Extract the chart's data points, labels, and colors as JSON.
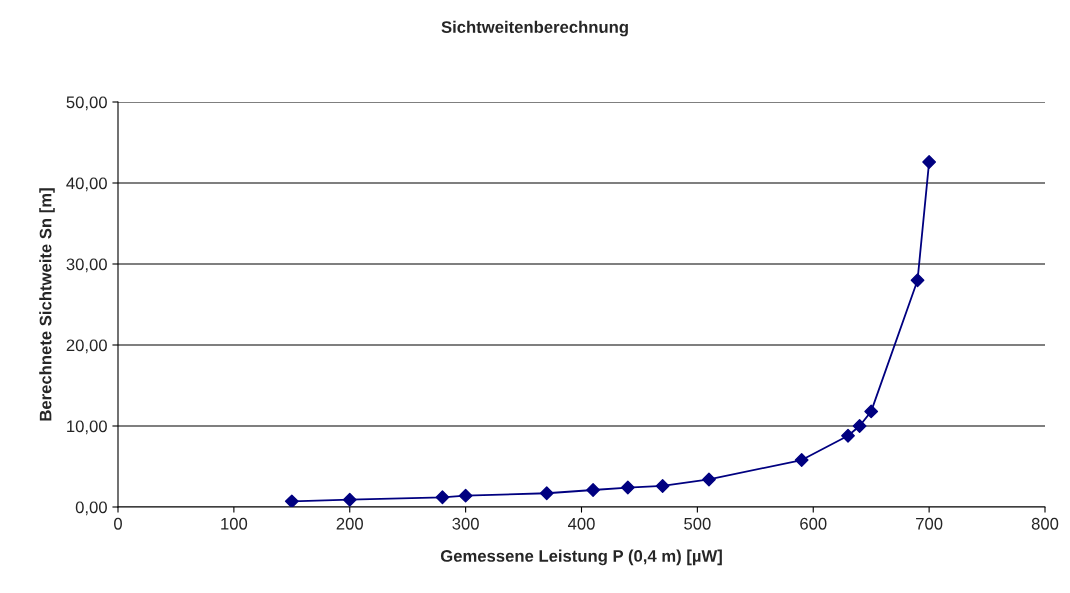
{
  "chart_data": {
    "type": "line",
    "title": "Sichtweitenberechnung",
    "xlabel": "Gemessene Leistung P (0,4 m) [µW]",
    "ylabel": "Berechnete Sichtweite Sn [m]",
    "x": [
      150,
      200,
      280,
      300,
      370,
      410,
      440,
      470,
      510,
      590,
      630,
      640,
      650,
      690,
      700
    ],
    "series": [
      {
        "color": "#000080",
        "values": [
          0.7,
          0.9,
          1.2,
          1.4,
          1.7,
          2.1,
          2.4,
          2.6,
          3.4,
          5.8,
          8.8,
          10.0,
          11.8,
          28.0,
          42.6
        ]
      }
    ],
    "xlim": [
      0,
      800
    ],
    "xticks": [
      0,
      100,
      200,
      300,
      400,
      500,
      600,
      700,
      800
    ],
    "ylim": [
      0,
      50
    ],
    "yticks": [
      {
        "value": 0,
        "label": "0,00"
      },
      {
        "value": 10,
        "label": "10,00"
      },
      {
        "value": 20,
        "label": "20,00"
      },
      {
        "value": 30,
        "label": "30,00"
      },
      {
        "value": 40,
        "label": "40,00"
      },
      {
        "value": 50,
        "label": "50,00"
      }
    ],
    "grid": "y",
    "marker": "diamond",
    "line_style": "solid",
    "legend": false
  }
}
